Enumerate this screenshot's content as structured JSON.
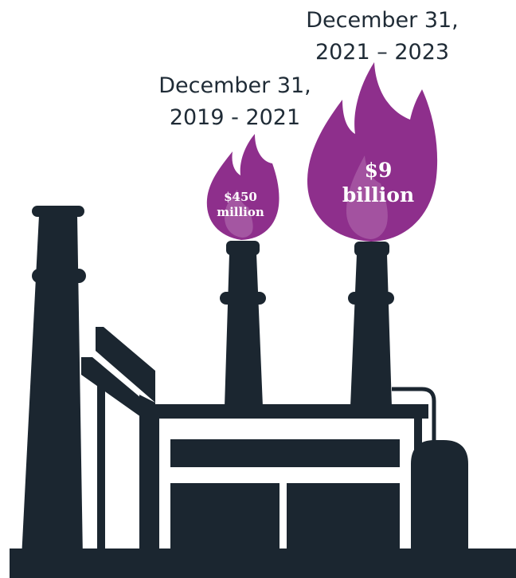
{
  "labels": {
    "period_1": {
      "line1": "December 31,",
      "line2": "2019 - 2021"
    },
    "period_2": {
      "line1": "December 31,",
      "line2": "2021 – 2023"
    }
  },
  "amounts": {
    "small": {
      "line1": "$450",
      "line2": "million"
    },
    "large": {
      "line1": "$9",
      "line2": "billion"
    }
  },
  "colors": {
    "factory": "#1b2630",
    "flame": "#8e2f8c",
    "flame_highlight": "#b776b4",
    "text": "#1f2b36"
  }
}
